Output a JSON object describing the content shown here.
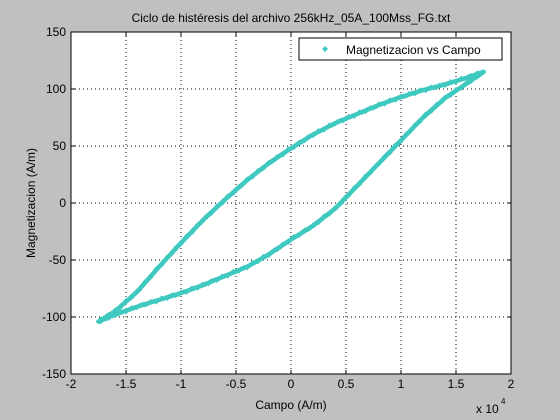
{
  "chart_data": {
    "type": "scatter",
    "title": "Ciclo de histéresis del archivo 256kHz_05A_100Mss_FG.txt",
    "xlabel": "Campo (A/m)",
    "ylabel": "Magnetizacion (A/m)",
    "x_exponent_label": "x 10",
    "x_exponent_power": "4",
    "xlim": [
      -2,
      2
    ],
    "ylim": [
      -150,
      150
    ],
    "x_ticks": [
      -2,
      -1.5,
      -1,
      -0.5,
      0,
      0.5,
      1,
      1.5,
      2
    ],
    "x_tick_labels": [
      "-2",
      "-1.5",
      "-1",
      "-0.5",
      "0",
      "0.5",
      "1",
      "1.5",
      "2"
    ],
    "y_ticks": [
      -150,
      -100,
      -50,
      0,
      50,
      100,
      150
    ],
    "y_tick_labels": [
      "-150",
      "-100",
      "-50",
      "0",
      "50",
      "100",
      "150"
    ],
    "grid": true,
    "grid_style": "dotted",
    "legend_position": "top-right",
    "series": [
      {
        "name": "Magnetizacion vs Campo",
        "color": "#3fc9c0",
        "marker": "diamond",
        "branches": [
          {
            "id": "descending",
            "x": [
              1.75,
              1.6,
              1.4,
              1.2,
              1.0,
              0.8,
              0.6,
              0.4,
              0.2,
              0.0,
              -0.2,
              -0.4,
              -0.6,
              -0.8,
              -1.0,
              -1.2,
              -1.4,
              -1.6,
              -1.75
            ],
            "y": [
              115,
              110,
              104,
              99,
              93,
              86,
              78,
              70,
              60,
              48,
              35,
              20,
              3,
              -15,
              -35,
              -56,
              -78,
              -95,
              -104
            ]
          },
          {
            "id": "ascending",
            "x": [
              -1.75,
              -1.6,
              -1.4,
              -1.2,
              -1.0,
              -0.8,
              -0.6,
              -0.4,
              -0.2,
              0.0,
              0.2,
              0.4,
              0.6,
              0.8,
              1.0,
              1.2,
              1.4,
              1.6,
              1.75
            ],
            "y": [
              -104,
              -98,
              -91,
              -85,
              -79,
              -72,
              -64,
              -56,
              -45,
              -32,
              -20,
              -5,
              15,
              35,
              55,
              75,
              92,
              105,
              115
            ]
          }
        ]
      }
    ]
  }
}
